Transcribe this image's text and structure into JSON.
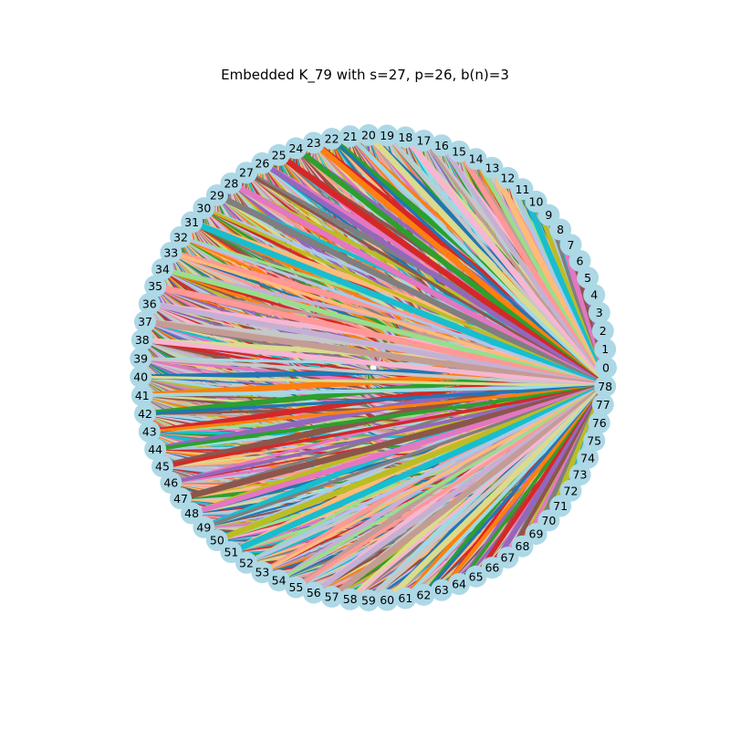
{
  "title": "Embedded K_79 with s=27, p=26, b(n)=3",
  "graph": {
    "node_count": 79,
    "node_labels": [
      "0",
      "1",
      "2",
      "3",
      "4",
      "5",
      "6",
      "7",
      "8",
      "9",
      "10",
      "11",
      "12",
      "13",
      "14",
      "15",
      "16",
      "17",
      "18",
      "19",
      "20",
      "21",
      "22",
      "23",
      "24",
      "25",
      "26",
      "27",
      "28",
      "29",
      "30",
      "31",
      "32",
      "33",
      "34",
      "35",
      "36",
      "37",
      "38",
      "39",
      "40",
      "41",
      "42",
      "43",
      "44",
      "45",
      "46",
      "47",
      "48",
      "49",
      "50",
      "51",
      "52",
      "53",
      "54",
      "55",
      "56",
      "57",
      "58",
      "59",
      "60",
      "61",
      "62",
      "63",
      "64",
      "65",
      "66",
      "67",
      "68",
      "69",
      "70",
      "71",
      "72",
      "73",
      "74",
      "75",
      "76",
      "77",
      "78"
    ],
    "node_color": "#add8e6",
    "edge_colors": [
      "#1f77b4",
      "#ff7f0e",
      "#2ca02c",
      "#d62728",
      "#9467bd",
      "#8c564b",
      "#e377c2",
      "#7f7f7f",
      "#bcbd22",
      "#17becf",
      "#aec7e8",
      "#ffbb78",
      "#98df8a",
      "#ff9896",
      "#c5b0d5",
      "#c49c94",
      "#f7b6d2",
      "#c7c7c7",
      "#dbdb8d",
      "#9edae5"
    ],
    "hub_nodes": [
      "0",
      "78"
    ]
  }
}
